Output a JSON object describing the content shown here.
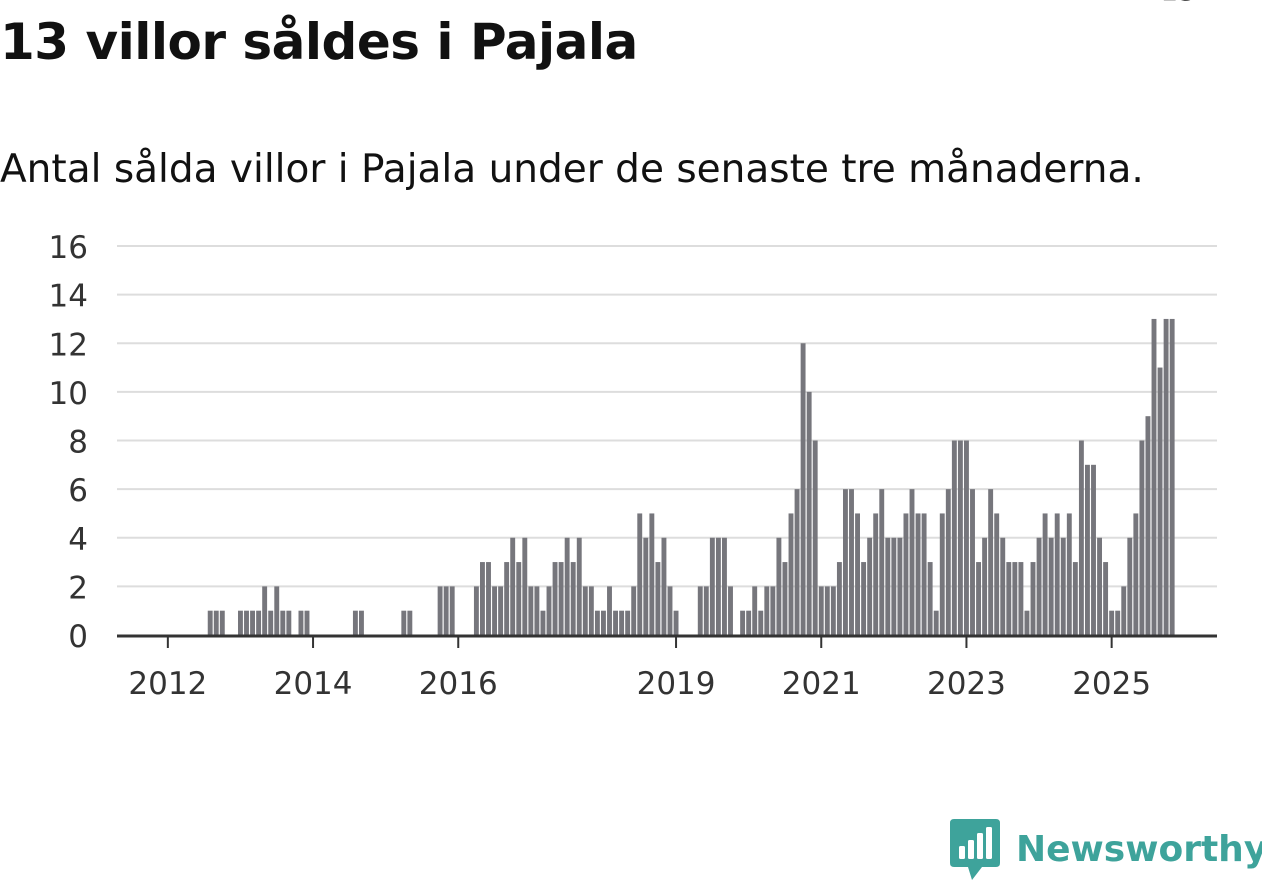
{
  "title": "13 villor såldes i Pajala",
  "subtitle": "Antal sålda villor i Pajala under de senaste tre månaderna.",
  "colors": {
    "bar": "#76767c",
    "highlight": "#1a9e93",
    "grid": "#dddddd",
    "axis": "#333333",
    "text": "#111111",
    "brand": "#3ea39b"
  },
  "brand": {
    "name": "Newsworthy",
    "icon": "bar-chart-badge-icon"
  },
  "chart_data": {
    "type": "bar",
    "title": "13 villor såldes i Pajala",
    "subtitle": "Antal sålda villor i Pajala under de senaste tre månaderna.",
    "xlabel": "",
    "ylabel": "",
    "ylim": [
      0,
      16
    ],
    "yticks": [
      0,
      2,
      4,
      6,
      8,
      10,
      12,
      14,
      16
    ],
    "grid": true,
    "x_start": "2011-11",
    "x_tick_labels": [
      {
        "label": "2012",
        "index": 8
      },
      {
        "label": "2014",
        "index": 32
      },
      {
        "label": "2016",
        "index": 56
      },
      {
        "label": "2019",
        "index": 92
      },
      {
        "label": "2021",
        "index": 116
      },
      {
        "label": "2023",
        "index": 140
      },
      {
        "label": "2025",
        "index": 164
      }
    ],
    "values": [
      0,
      0,
      0,
      0,
      0,
      0,
      0,
      0,
      0,
      0,
      0,
      0,
      0,
      0,
      0,
      1,
      1,
      1,
      0,
      0,
      1,
      1,
      1,
      1,
      2,
      1,
      2,
      1,
      1,
      0,
      1,
      1,
      0,
      0,
      0,
      0,
      0,
      0,
      0,
      1,
      1,
      0,
      0,
      0,
      0,
      0,
      0,
      1,
      1,
      0,
      0,
      0,
      0,
      2,
      2,
      2,
      0,
      0,
      0,
      2,
      3,
      3,
      2,
      2,
      3,
      4,
      3,
      4,
      2,
      2,
      1,
      2,
      3,
      3,
      4,
      3,
      4,
      2,
      2,
      1,
      1,
      2,
      1,
      1,
      1,
      2,
      5,
      4,
      5,
      3,
      4,
      2,
      1,
      0,
      0,
      0,
      2,
      2,
      4,
      4,
      4,
      2,
      0,
      1,
      1,
      2,
      1,
      2,
      2,
      4,
      3,
      5,
      6,
      12,
      10,
      8,
      2,
      2,
      2,
      3,
      6,
      6,
      5,
      3,
      4,
      5,
      6,
      4,
      4,
      4,
      5,
      6,
      5,
      5,
      3,
      1,
      5,
      6,
      8,
      8,
      8,
      6,
      3,
      4,
      6,
      5,
      4,
      3,
      3,
      3,
      1,
      3,
      4,
      5,
      4,
      5,
      4,
      5,
      3,
      8,
      7,
      7,
      4,
      3,
      1,
      1,
      2,
      4,
      5,
      8,
      9,
      13,
      11,
      13,
      13
    ],
    "highlight_index": 175,
    "annotation": "13"
  }
}
